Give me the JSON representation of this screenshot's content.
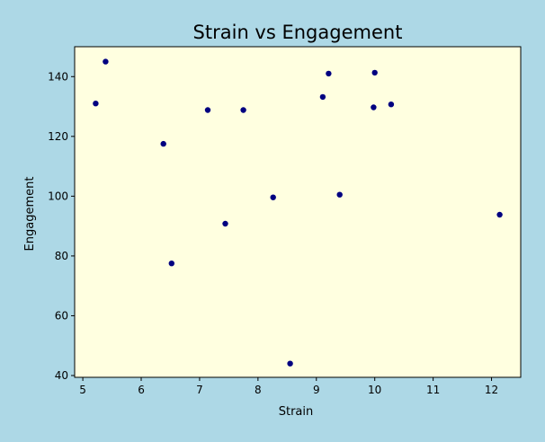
{
  "figure": {
    "background": "#add8e6"
  },
  "chart_data": {
    "type": "scatter",
    "title": "Strain vs Engagement",
    "xlabel": "Strain",
    "ylabel": "Engagement",
    "xlim": [
      4.86,
      12.5
    ],
    "ylim": [
      39.4,
      150
    ],
    "xticks": [
      5,
      6,
      7,
      8,
      9,
      10,
      11,
      12
    ],
    "yticks": [
      40,
      60,
      80,
      100,
      120,
      140
    ],
    "grid": false,
    "legend": "none",
    "plot_background": "#ffffe0",
    "marker_color": "#000080",
    "points": [
      {
        "x": 5.22,
        "y": 131.0
      },
      {
        "x": 5.39,
        "y": 145.0
      },
      {
        "x": 6.38,
        "y": 117.5
      },
      {
        "x": 6.52,
        "y": 77.5
      },
      {
        "x": 7.14,
        "y": 128.8
      },
      {
        "x": 7.44,
        "y": 90.8
      },
      {
        "x": 7.75,
        "y": 128.8
      },
      {
        "x": 8.26,
        "y": 99.6
      },
      {
        "x": 8.55,
        "y": 44.0
      },
      {
        "x": 9.11,
        "y": 133.2
      },
      {
        "x": 9.21,
        "y": 141.0
      },
      {
        "x": 9.4,
        "y": 100.5
      },
      {
        "x": 9.98,
        "y": 129.7
      },
      {
        "x": 10.0,
        "y": 141.3
      },
      {
        "x": 10.28,
        "y": 130.7
      },
      {
        "x": 12.14,
        "y": 93.8
      }
    ]
  }
}
